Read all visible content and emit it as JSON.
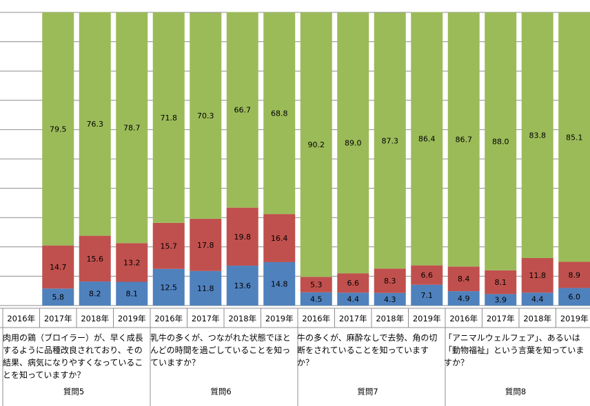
{
  "chart_data": {
    "type": "bar",
    "stacked": true,
    "categories": [
      "2016年",
      "2017年",
      "2018年",
      "2019年",
      "2016年",
      "2017年",
      "2018年",
      "2019年",
      "2016年",
      "2017年",
      "2018年",
      "2019年",
      "2016年",
      "2017年",
      "2018年",
      "2019年"
    ],
    "groups": [
      {
        "label": "質問5",
        "question": "肉用の鶏（ブロイラー）が、早く成長するように品種改良されており、その結果、病気になりやすくなっていることを知っていますか？",
        "years": [
          "2016年",
          "2017年",
          "2018年",
          "2019年"
        ]
      },
      {
        "label": "質問6",
        "question": "乳牛の多くが、つながれた状態でほとんどの時間を過ごしていることを知っていますか？",
        "years": [
          "2016年",
          "2017年",
          "2018年",
          "2019年"
        ]
      },
      {
        "label": "質問7",
        "question": "牛の多くが、麻酔なしで去勢、角の切断をされていることを知っていますか？",
        "years": [
          "2016年",
          "2017年",
          "2018年",
          "2019年"
        ]
      },
      {
        "label": "質問8",
        "question": "「アニマルウェルフェア」、あるいは「動物福祉」という言葉を知っていますか？",
        "years": [
          "2016年",
          "2017年",
          "2018年",
          "2019年"
        ]
      }
    ],
    "series": [
      {
        "color": "#4f81bd",
        "values": [
          null,
          5.8,
          8.2,
          8.1,
          12.5,
          11.8,
          13.6,
          14.8,
          4.5,
          4.4,
          4.3,
          7.1,
          4.9,
          3.9,
          4.4,
          6.0
        ]
      },
      {
        "color": "#c0504d",
        "values": [
          null,
          14.7,
          15.6,
          13.2,
          15.7,
          17.8,
          19.8,
          16.4,
          5.3,
          6.6,
          8.3,
          6.6,
          8.4,
          8.1,
          11.8,
          8.9
        ]
      },
      {
        "color": "#9bbb59",
        "values": [
          null,
          79.5,
          76.3,
          78.7,
          71.8,
          70.3,
          66.7,
          68.8,
          90.2,
          89.0,
          87.3,
          86.4,
          86.7,
          88.0,
          83.8,
          85.1
        ]
      }
    ],
    "ylim": [
      0,
      100
    ],
    "grid": true,
    "legend": "none"
  }
}
